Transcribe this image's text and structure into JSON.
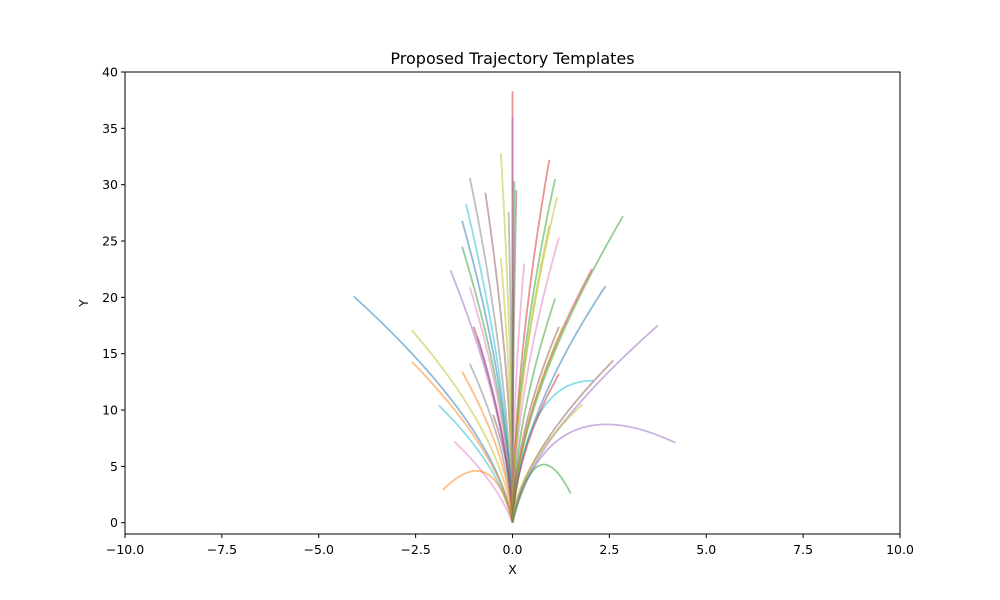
{
  "chart_data": {
    "type": "line",
    "title": "Proposed Trajectory Templates",
    "xlabel": "X",
    "ylabel": "Y",
    "xlim": [
      -10,
      10
    ],
    "ylim": [
      -1,
      40
    ],
    "xticks": [
      "−10.0",
      "−7.5",
      "−5.0",
      "−2.5",
      "0.0",
      "2.5",
      "5.0",
      "7.5",
      "10.0"
    ],
    "xtick_values": [
      -10,
      -7.5,
      -5,
      -2.5,
      0,
      2.5,
      5,
      7.5,
      10
    ],
    "yticks": [
      "0",
      "5",
      "10",
      "15",
      "20",
      "25",
      "30",
      "35",
      "40"
    ],
    "ytick_values": [
      0,
      5,
      10,
      15,
      20,
      25,
      30,
      35,
      40
    ],
    "grid": false,
    "legend": "none",
    "palette": [
      "#1f77b4",
      "#ff7f0e",
      "#2ca02c",
      "#d62728",
      "#9467bd",
      "#8c564b",
      "#e377c2",
      "#7f7f7f",
      "#bcbd22",
      "#17becf"
    ],
    "series": [
      {
        "color": "#1f77b4",
        "end": [
          -4.1,
          20.1
        ],
        "ctrl": [
          -0.4,
          8.5
        ]
      },
      {
        "color": "#ff7f0e",
        "end": [
          -2.6,
          14.3
        ],
        "ctrl": [
          -0.3,
          6.2
        ]
      },
      {
        "color": "#bcbd22",
        "end": [
          -2.6,
          17.1
        ],
        "ctrl": [
          -0.2,
          7.5
        ]
      },
      {
        "color": "#17becf",
        "end": [
          -1.9,
          10.4
        ],
        "ctrl": [
          -0.3,
          5.0
        ]
      },
      {
        "color": "#e377c2",
        "end": [
          -1.5,
          7.2
        ],
        "ctrl": [
          -0.4,
          3.6
        ]
      },
      {
        "color": "#ff7f0e",
        "end": [
          -1.8,
          2.9
        ],
        "ctrl": [
          -0.5,
          7.4
        ]
      },
      {
        "color": "#9467bd",
        "end": [
          -1.6,
          22.4
        ],
        "ctrl": [
          -0.1,
          9.5
        ]
      },
      {
        "color": "#7f7f7f",
        "end": [
          -1.1,
          30.6
        ],
        "ctrl": [
          -0.1,
          14.0
        ]
      },
      {
        "color": "#17becf",
        "end": [
          -1.2,
          28.3
        ],
        "ctrl": [
          -0.1,
          12.5
        ]
      },
      {
        "color": "#1f77b4",
        "end": [
          -1.3,
          26.8
        ],
        "ctrl": [
          -0.1,
          12.0
        ]
      },
      {
        "color": "#8c564b",
        "end": [
          -0.7,
          29.3
        ],
        "ctrl": [
          0.0,
          13.0
        ]
      },
      {
        "color": "#2ca02c",
        "end": [
          -1.3,
          24.5
        ],
        "ctrl": [
          -0.1,
          11.0
        ]
      },
      {
        "color": "#bcbd22",
        "end": [
          -0.3,
          32.8
        ],
        "ctrl": [
          0.0,
          15.0
        ]
      },
      {
        "color": "#7f7f7f",
        "end": [
          -1.1,
          14.1
        ],
        "ctrl": [
          -0.1,
          6.5
        ]
      },
      {
        "color": "#d62728",
        "end": [
          -1.0,
          17.4
        ],
        "ctrl": [
          -0.1,
          8.0
        ]
      },
      {
        "color": "#e377c2",
        "end": [
          -1.1,
          20.9
        ],
        "ctrl": [
          -0.1,
          9.5
        ]
      },
      {
        "color": "#9467bd",
        "end": [
          -0.9,
          16.5
        ],
        "ctrl": [
          -0.1,
          7.5
        ]
      },
      {
        "color": "#ff7f0e",
        "end": [
          -1.3,
          13.4
        ],
        "ctrl": [
          -0.1,
          6.0
        ]
      },
      {
        "color": "#8c564b",
        "end": [
          -0.5,
          9.6
        ],
        "ctrl": [
          0.0,
          4.5
        ]
      },
      {
        "color": "#d62728",
        "end": [
          0.0,
          38.3
        ],
        "ctrl": [
          0.0,
          19.0
        ]
      },
      {
        "color": "#9467bd",
        "end": [
          0.0,
          36.0
        ],
        "ctrl": [
          0.0,
          18.0
        ]
      },
      {
        "color": "#2ca02c",
        "end": [
          0.05,
          30.3
        ],
        "ctrl": [
          0.0,
          14.0
        ]
      },
      {
        "color": "#8c564b",
        "end": [
          0.1,
          29.5
        ],
        "ctrl": [
          0.0,
          14.0
        ]
      },
      {
        "color": "#7f7f7f",
        "end": [
          -0.1,
          27.6
        ],
        "ctrl": [
          0.0,
          13.0
        ]
      },
      {
        "color": "#bcbd22",
        "end": [
          -0.3,
          23.5
        ],
        "ctrl": [
          0.0,
          11.0
        ]
      },
      {
        "color": "#e377c2",
        "end": [
          0.3,
          23.0
        ],
        "ctrl": [
          0.0,
          11.0
        ]
      },
      {
        "color": "#d62728",
        "end": [
          0.95,
          32.2
        ],
        "ctrl": [
          0.05,
          14.5
        ]
      },
      {
        "color": "#2ca02c",
        "end": [
          1.1,
          30.5
        ],
        "ctrl": [
          0.05,
          14.0
        ]
      },
      {
        "color": "#bcbd22",
        "end": [
          1.15,
          28.9
        ],
        "ctrl": [
          0.05,
          13.0
        ]
      },
      {
        "color": "#bcbd22",
        "end": [
          0.95,
          26.4
        ],
        "ctrl": [
          0.05,
          12.0
        ]
      },
      {
        "color": "#e377c2",
        "end": [
          1.2,
          25.3
        ],
        "ctrl": [
          0.05,
          11.5
        ]
      },
      {
        "color": "#2ca02c",
        "end": [
          2.85,
          27.2
        ],
        "ctrl": [
          0.1,
          11.0
        ]
      },
      {
        "color": "#d62728",
        "end": [
          2.05,
          22.5
        ],
        "ctrl": [
          0.1,
          10.0
        ]
      },
      {
        "color": "#1f77b4",
        "end": [
          2.4,
          21.0
        ],
        "ctrl": [
          0.1,
          9.0
        ]
      },
      {
        "color": "#2ca02c",
        "end": [
          1.1,
          19.9
        ],
        "ctrl": [
          0.05,
          9.0
        ]
      },
      {
        "color": "#8c564b",
        "end": [
          1.2,
          17.4
        ],
        "ctrl": [
          0.05,
          8.0
        ]
      },
      {
        "color": "#bcbd22",
        "end": [
          1.3,
          17.4
        ],
        "ctrl": [
          0.1,
          8.0
        ]
      },
      {
        "color": "#9467bd",
        "end": [
          3.75,
          17.5
        ],
        "ctrl": [
          0.3,
          7.0
        ]
      },
      {
        "color": "#8c564b",
        "end": [
          2.6,
          14.4
        ],
        "ctrl": [
          0.2,
          6.0
        ]
      },
      {
        "color": "#17becf",
        "end": [
          2.1,
          12.6
        ],
        "ctrl": [
          0.3,
          12.8
        ]
      },
      {
        "color": "#d62728",
        "end": [
          1.2,
          13.2
        ],
        "ctrl": [
          0.1,
          6.5
        ]
      },
      {
        "color": "#bcbd22",
        "end": [
          1.8,
          10.5
        ],
        "ctrl": [
          0.1,
          5.0
        ]
      },
      {
        "color": "#9467bd",
        "end": [
          4.2,
          7.1
        ],
        "ctrl": [
          0.9,
          12.5
        ]
      },
      {
        "color": "#2ca02c",
        "end": [
          1.5,
          2.6
        ],
        "ctrl": [
          0.6,
          8.8
        ]
      }
    ]
  }
}
